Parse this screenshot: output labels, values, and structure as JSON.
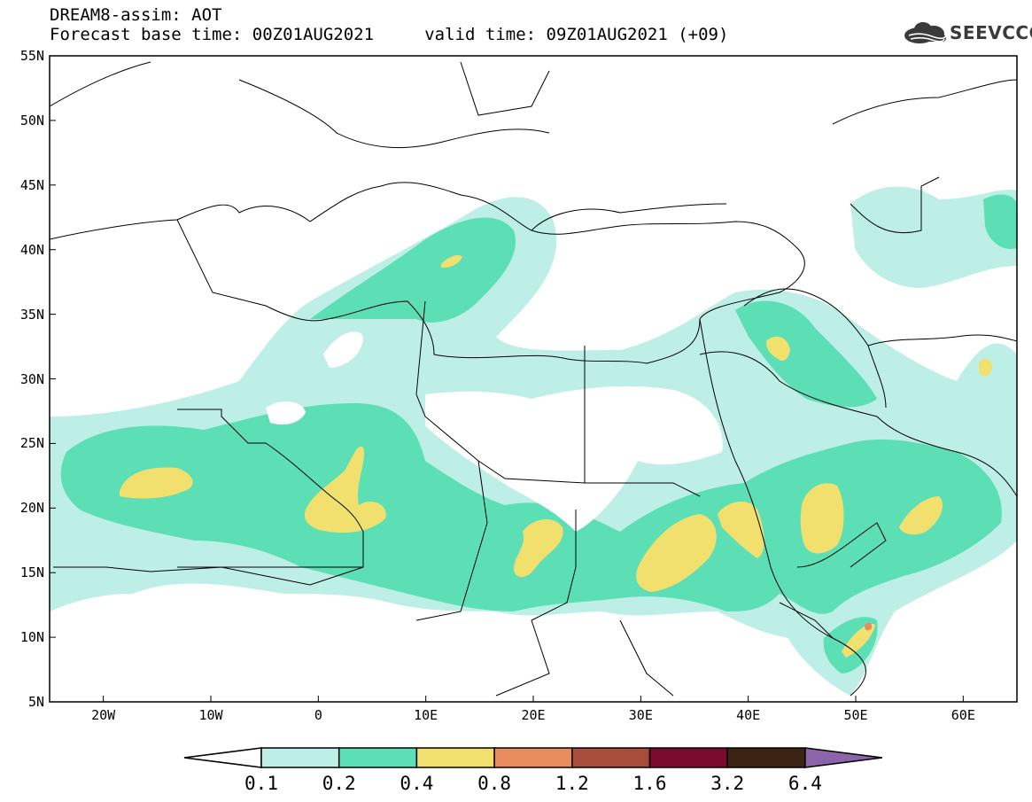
{
  "title": {
    "line1": "DREAM8-assim: AOT",
    "line2": "Forecast base time: 00Z01AUG2021     valid time: 09Z01AUG2021 (+09)"
  },
  "logo": {
    "text": "SEEVCCC",
    "icon": "cloud-icon",
    "color": "#3a3a3a"
  },
  "map": {
    "projection": "lat-lon",
    "lon_range": [
      -25,
      65
    ],
    "lat_range": [
      5,
      55
    ],
    "lat_labels": [
      "55N",
      "50N",
      "45N",
      "40N",
      "35N",
      "30N",
      "25N",
      "20N",
      "15N",
      "10N",
      "5N"
    ],
    "lon_labels": [
      "20W",
      "10W",
      "0",
      "10E",
      "20E",
      "30E",
      "40E",
      "50E",
      "60E"
    ]
  },
  "colorbar": {
    "levels": [
      "0.1",
      "0.2",
      "0.4",
      "0.8",
      "1.2",
      "1.6",
      "3.2",
      "6.4"
    ],
    "colors": [
      "#ffffff",
      "#bdefe6",
      "#5ddfb6",
      "#f2e06e",
      "#e88c5e",
      "#a84c3c",
      "#7a0a2e",
      "#3c2414",
      "#8c64aa"
    ]
  }
}
